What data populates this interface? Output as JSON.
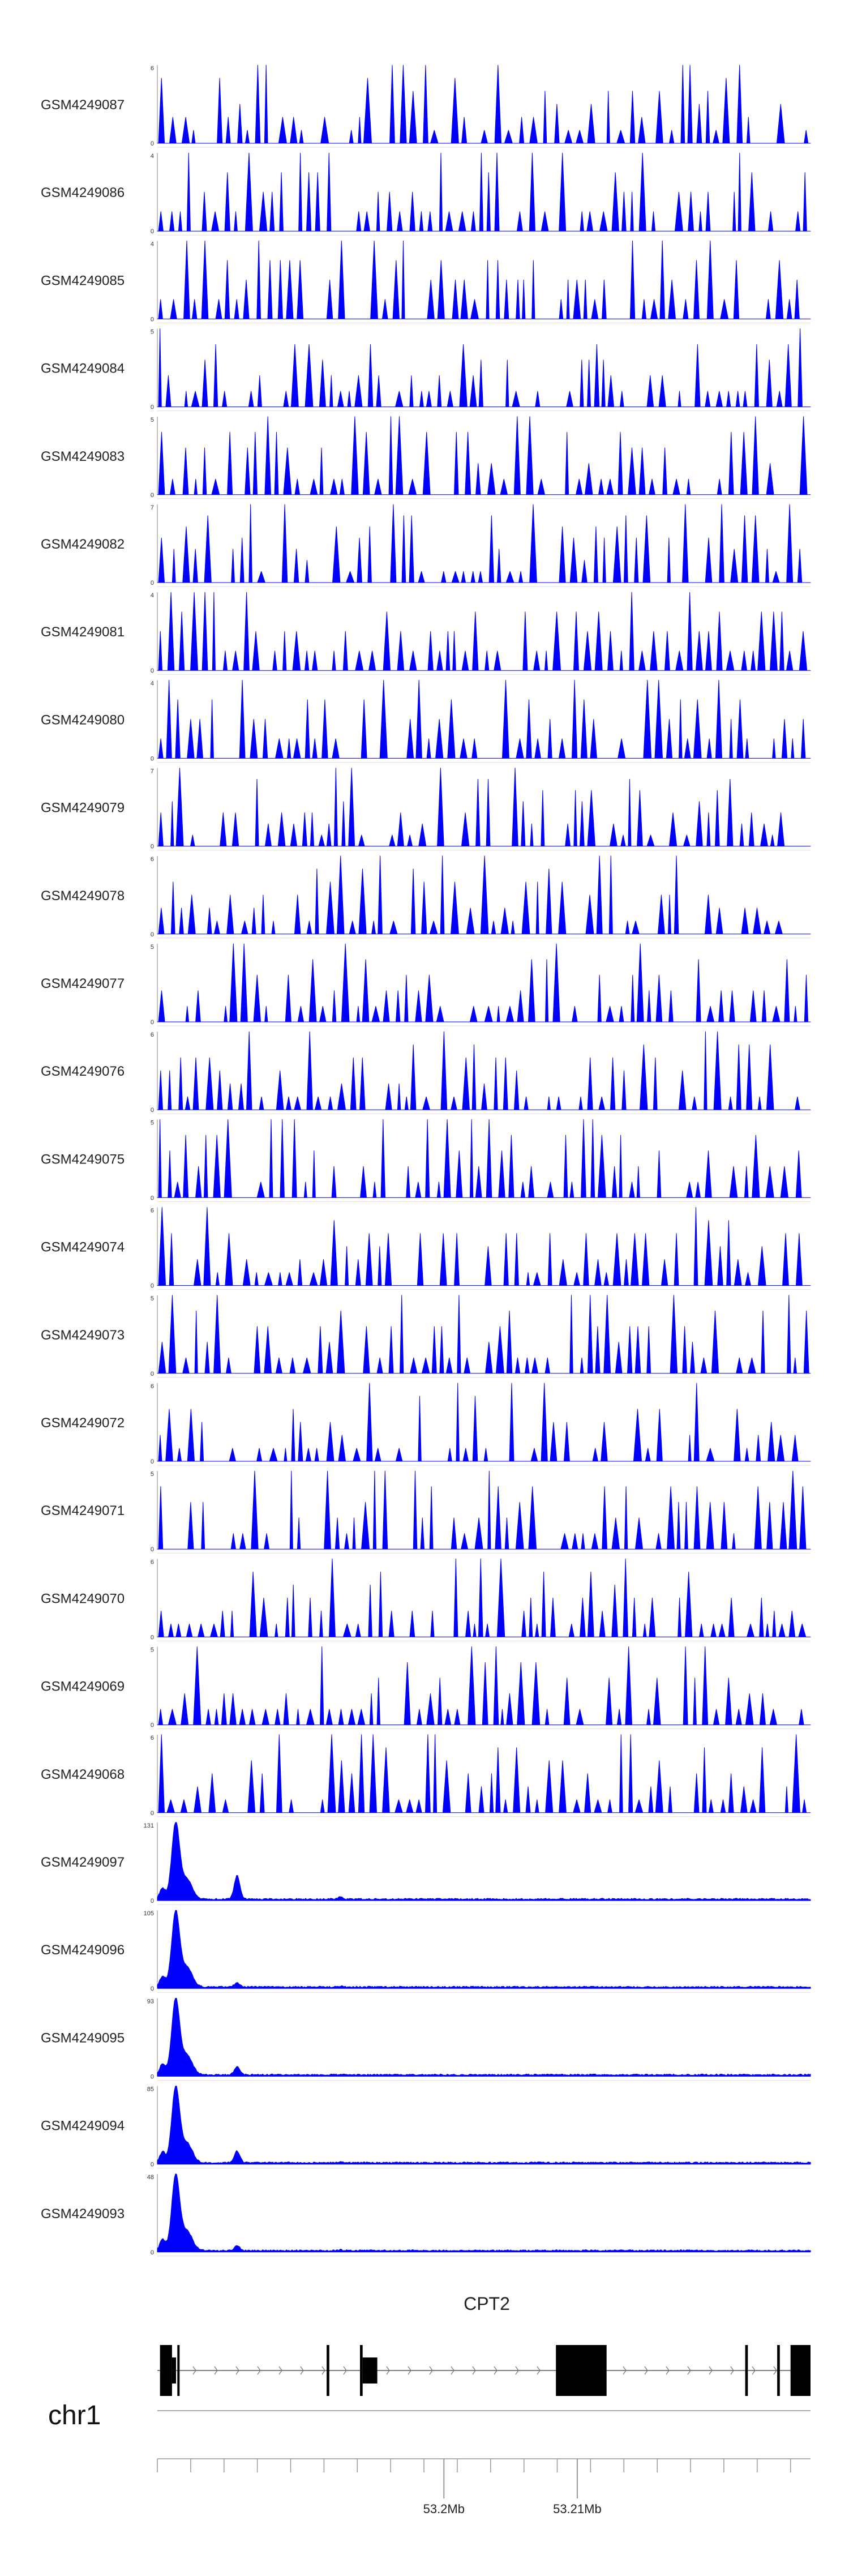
{
  "chart_data": {
    "type": "area",
    "color": "#0000ff",
    "chromosome": "chr1",
    "x_range": [
      53.1785,
      53.2275
    ],
    "x_ticks": [
      {
        "value": 53.2,
        "label": "53.2Mb"
      },
      {
        "value": 53.21,
        "label": "53.21Mb"
      }
    ],
    "tracks": [
      {
        "name": "GSM4249087",
        "ymax": 6,
        "ymin_label": "0",
        "ymax_label": "6",
        "style": "sparse",
        "seed": 87
      },
      {
        "name": "GSM4249086",
        "ymax": 4,
        "ymin_label": "0",
        "ymax_label": "4",
        "style": "sparse",
        "seed": 86
      },
      {
        "name": "GSM4249085",
        "ymax": 4,
        "ymin_label": "0",
        "ymax_label": "4",
        "style": "sparse",
        "seed": 85
      },
      {
        "name": "GSM4249084",
        "ymax": 5,
        "ymin_label": "0",
        "ymax_label": "5",
        "style": "sparse",
        "seed": 84
      },
      {
        "name": "GSM4249083",
        "ymax": 5,
        "ymin_label": "0",
        "ymax_label": "5",
        "style": "sparse",
        "seed": 83
      },
      {
        "name": "GSM4249082",
        "ymax": 7,
        "ymin_label": "0",
        "ymax_label": "7",
        "style": "sparse",
        "seed": 82
      },
      {
        "name": "GSM4249081",
        "ymax": 4,
        "ymin_label": "0",
        "ymax_label": "4",
        "style": "sparse",
        "seed": 81
      },
      {
        "name": "GSM4249080",
        "ymax": 4,
        "ymin_label": "0",
        "ymax_label": "4",
        "style": "sparse",
        "seed": 80
      },
      {
        "name": "GSM4249079",
        "ymax": 7,
        "ymin_label": "0",
        "ymax_label": "7",
        "style": "sparse",
        "seed": 79
      },
      {
        "name": "GSM4249078",
        "ymax": 6,
        "ymin_label": "0",
        "ymax_label": "6",
        "style": "sparse",
        "seed": 78
      },
      {
        "name": "GSM4249077",
        "ymax": 5,
        "ymin_label": "0",
        "ymax_label": "5",
        "style": "sparse",
        "seed": 77
      },
      {
        "name": "GSM4249076",
        "ymax": 6,
        "ymin_label": "0",
        "ymax_label": "6",
        "style": "sparse",
        "seed": 76
      },
      {
        "name": "GSM4249075",
        "ymax": 5,
        "ymin_label": "0",
        "ymax_label": "5",
        "style": "sparse",
        "seed": 75
      },
      {
        "name": "GSM4249074",
        "ymax": 6,
        "ymin_label": "0",
        "ymax_label": "6",
        "style": "sparse",
        "seed": 74
      },
      {
        "name": "GSM4249073",
        "ymax": 5,
        "ymin_label": "0",
        "ymax_label": "5",
        "style": "sparse",
        "seed": 73
      },
      {
        "name": "GSM4249072",
        "ymax": 6,
        "ymin_label": "0",
        "ymax_label": "6",
        "style": "sparse",
        "seed": 72
      },
      {
        "name": "GSM4249071",
        "ymax": 5,
        "ymin_label": "0",
        "ymax_label": "5",
        "style": "sparse",
        "seed": 71
      },
      {
        "name": "GSM4249070",
        "ymax": 6,
        "ymin_label": "0",
        "ymax_label": "6",
        "style": "sparse",
        "seed": 70
      },
      {
        "name": "GSM4249069",
        "ymax": 5,
        "ymin_label": "0",
        "ymax_label": "5",
        "style": "sparse",
        "seed": 69
      },
      {
        "name": "GSM4249068",
        "ymax": 6,
        "ymin_label": "0",
        "ymax_label": "6",
        "style": "sparse",
        "seed": 68
      },
      {
        "name": "GSM4249097",
        "ymax": 131,
        "ymin_label": "0",
        "ymax_label": "131",
        "style": "peak",
        "seed": 97,
        "second_peak": 0.3
      },
      {
        "name": "GSM4249096",
        "ymax": 105,
        "ymin_label": "0",
        "ymax_label": "105",
        "style": "peak",
        "seed": 96,
        "second_peak": 0.05
      },
      {
        "name": "GSM4249095",
        "ymax": 93,
        "ymin_label": "0",
        "ymax_label": "93",
        "style": "peak",
        "seed": 95,
        "second_peak": 0.1
      },
      {
        "name": "GSM4249094",
        "ymax": 85,
        "ymin_label": "0",
        "ymax_label": "85",
        "style": "peak",
        "seed": 94,
        "second_peak": 0.15
      },
      {
        "name": "GSM4249093",
        "ymax": 48,
        "ymin_label": "0",
        "ymax_label": "48",
        "style": "peak",
        "seed": 93,
        "second_peak": 0.06
      }
    ],
    "gene": {
      "name": "CPT2",
      "strand": "+",
      "start": 53.1785,
      "end": 53.2275,
      "exons": [
        {
          "start": 53.1787,
          "end": 53.1796,
          "thick": true
        },
        {
          "start": 53.1796,
          "end": 53.1799,
          "thick": false
        },
        {
          "start": 53.18,
          "end": 53.1801,
          "thick": true
        },
        {
          "start": 53.1912,
          "end": 53.1914,
          "thick": true
        },
        {
          "start": 53.1937,
          "end": 53.1939,
          "thick": true
        },
        {
          "start": 53.1939,
          "end": 53.195,
          "thick": false
        },
        {
          "start": 53.2084,
          "end": 53.2122,
          "thick": true
        },
        {
          "start": 53.2226,
          "end": 53.2228,
          "thick": true
        },
        {
          "start": 53.225,
          "end": 53.2252,
          "thick": true
        },
        {
          "start": 53.226,
          "end": 53.2275,
          "thick": true
        }
      ]
    }
  }
}
